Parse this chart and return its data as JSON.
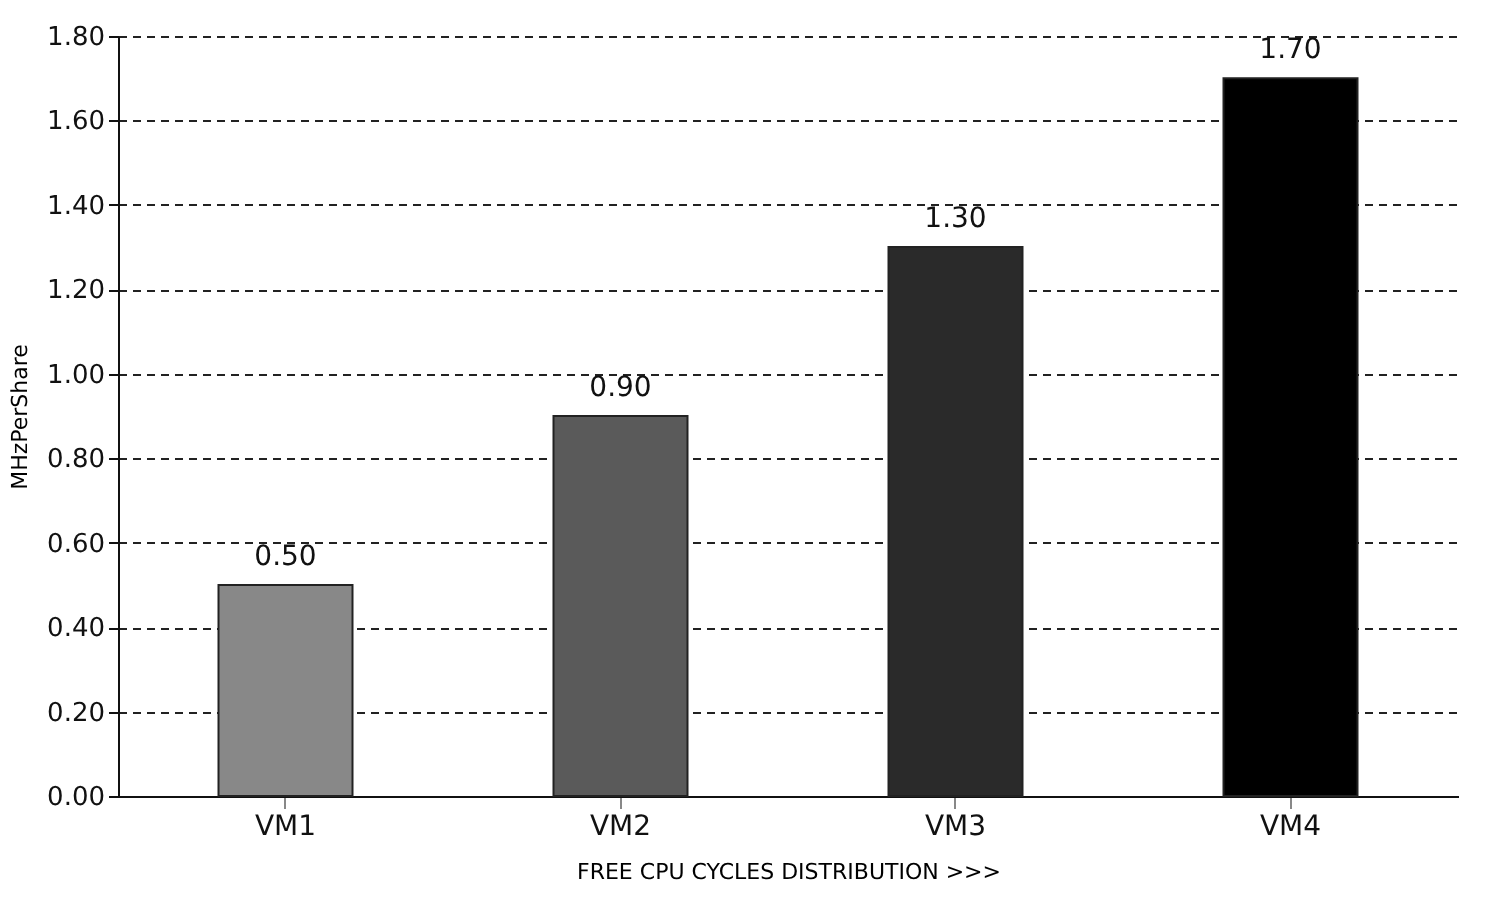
{
  "chart_data": {
    "type": "bar",
    "xlabel": "FREE CPU CYCLES DISTRIBUTION >>>",
    "ylabel": "MHzPerShare",
    "categories": [
      "VM1",
      "VM2",
      "VM3",
      "VM4"
    ],
    "values": [
      0.5,
      0.9,
      1.3,
      1.7
    ],
    "colors": [
      "#888888",
      "#5a5a5a",
      "#2a2a2a",
      "#000000"
    ],
    "value_labels": [
      "0.50",
      "0.90",
      "1.30",
      "1.70"
    ],
    "ylim": [
      0,
      1.8
    ],
    "yticks": [
      {
        "value": 0,
        "label": "0.00"
      },
      {
        "value": 0.2,
        "label": "0.20"
      },
      {
        "value": 0.4,
        "label": "0.40"
      },
      {
        "value": 0.6,
        "label": "0.60"
      },
      {
        "value": 0.8,
        "label": "0.80"
      },
      {
        "value": 1.0,
        "label": "1.00"
      },
      {
        "value": 1.2,
        "label": "1.20"
      },
      {
        "value": 1.4,
        "label": "1.40"
      },
      {
        "value": 1.6,
        "label": "1.60"
      },
      {
        "value": 1.8,
        "label": "1.80"
      }
    ],
    "grid": "y"
  }
}
